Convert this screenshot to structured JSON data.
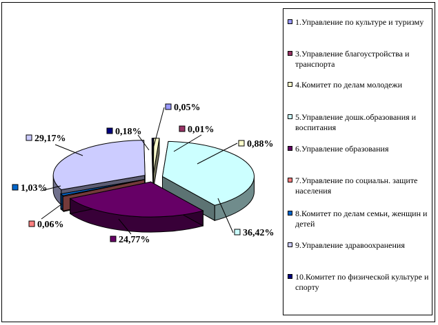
{
  "chart_data": {
    "type": "pie",
    "style": "3d-exploded",
    "legend_position": "right",
    "data_labels": "percent",
    "slices": [
      {
        "legend": "1.Управление по культуре и туризму",
        "label": "0,05%",
        "value": 0.05,
        "color": "#9999ff"
      },
      {
        "legend": "3.Управление благоустройства и транспорта",
        "label": "0,01%",
        "value": 0.01,
        "color": "#993366"
      },
      {
        "legend": "4.Комитет по делам молодежи",
        "label": "0,88%",
        "value": 0.88,
        "color": "#ffffcc"
      },
      {
        "legend": "5.Управление дошк.образования и воспитания",
        "label": "36,42%",
        "value": 36.42,
        "color": "#ccffff"
      },
      {
        "legend": "6.Управление образования",
        "label": "24,77%",
        "value": 24.77,
        "color": "#660066"
      },
      {
        "legend": "7.Управление по социальн. защите населения",
        "label": "0,06%",
        "value": 0.06,
        "color": "#ff8080"
      },
      {
        "legend": "8.Комитет по делам семьи, женщин и детей",
        "label": "1,03%",
        "value": 1.03,
        "color": "#0066cc"
      },
      {
        "legend": "9.Управление здравоохранения",
        "label": "29,17%",
        "value": 29.17,
        "color": "#ccccff"
      },
      {
        "legend": "10.Комитет по физической культуре и спорту",
        "label": "0,18%",
        "value": 0.18,
        "color": "#000080"
      }
    ]
  }
}
